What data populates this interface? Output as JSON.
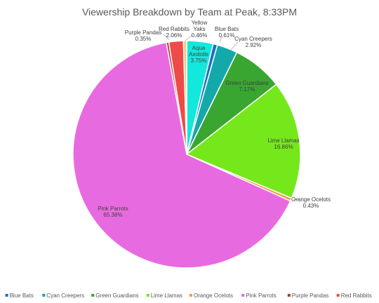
{
  "chart_data": {
    "type": "pie",
    "title": "Viewership Breakdown by Team at Peak, 8:33PM",
    "legend_position": "bottom",
    "slices": [
      {
        "name": "Aqua Axolotls",
        "value": 3.75,
        "label": "3.75%",
        "color": "#13e8dc"
      },
      {
        "name": "Blue Bats",
        "value": 0.61,
        "label": "0.61%",
        "color": "#1d6fc4"
      },
      {
        "name": "Cyan Creepers",
        "value": 2.92,
        "label": "2.92%",
        "color": "#13a9ab"
      },
      {
        "name": "Green Guardians",
        "value": 7.17,
        "label": "7.17%",
        "color": "#3aa632"
      },
      {
        "name": "Lime Llamas",
        "value": 16.86,
        "label": "16.86%",
        "color": "#74e81b"
      },
      {
        "name": "Orange Ocelots",
        "value": 0.43,
        "label": "0.43%",
        "color": "#f39b43"
      },
      {
        "name": "Pink Parrots",
        "value": 65.38,
        "label": "65.38%",
        "color": "#e86ae0"
      },
      {
        "name": "Purple Pandas",
        "value": 0.35,
        "label": "0.35%",
        "color": "#b03a2e"
      },
      {
        "name": "Red Rabbits",
        "value": 2.06,
        "label": "2.06%",
        "color": "#ef4a4a"
      },
      {
        "name": "Yellow Yaks",
        "value": 0.46,
        "label": "0.46%",
        "color": "#f6c86b"
      }
    ]
  }
}
